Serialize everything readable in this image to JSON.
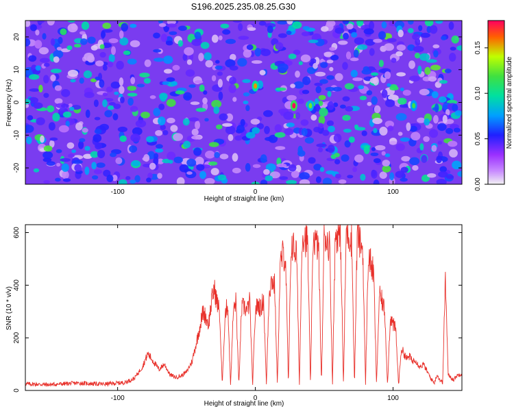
{
  "title": "S196.2025.235.08.25.G30",
  "chart_data": [
    {
      "type": "heatmap",
      "title": "S196.2025.235.08.25.G30",
      "xlabel": "Height of straight line (km)",
      "ylabel": "Frequency (Hz)",
      "xlim": [
        -167,
        150
      ],
      "ylim": [
        -25,
        25
      ],
      "x_ticks": [
        "-100",
        "0",
        "100"
      ],
      "x_tick_values": [
        -100,
        0,
        100
      ],
      "y_ticks": [
        "-20",
        "-10",
        "0",
        "10",
        "20"
      ],
      "y_tick_values": [
        -20,
        -10,
        0,
        10,
        20
      ],
      "colorbar": {
        "label": "Normalized spectral amplitude",
        "range": [
          0,
          0.18
        ],
        "ticks": [
          "0.00",
          "0.05",
          "0.10",
          "0.15"
        ],
        "tick_values": [
          0,
          0.05,
          0.1,
          0.15
        ],
        "colors": [
          "#f2f2f2",
          "#9b30ff",
          "#2020ff",
          "#00a0ff",
          "#00e0a0",
          "#40e040",
          "#c0ff00",
          "#ff6000",
          "#ff0060"
        ]
      },
      "peaks": [
        {
          "x": 28,
          "y": -1,
          "amplitude": 0.18
        },
        {
          "x": 40,
          "y": -1,
          "amplitude": 0.12
        },
        {
          "x": 115,
          "y": -1,
          "amplitude": 0.11
        },
        {
          "x": 0,
          "y": 5,
          "amplitude": 0.15
        }
      ]
    },
    {
      "type": "line",
      "xlabel": "Height of straight line (km)",
      "ylabel": "SNR (10 * v/v)",
      "xlim": [
        -167,
        150
      ],
      "ylim": [
        0,
        630
      ],
      "x_ticks": [
        "-100",
        "0",
        "100"
      ],
      "x_tick_values": [
        -100,
        0,
        100
      ],
      "y_ticks": [
        "0",
        "200",
        "400",
        "600"
      ],
      "y_tick_values": [
        0,
        200,
        400,
        600
      ],
      "series": [
        {
          "name": "SNR",
          "color": "#e8302a",
          "x": [
            -167,
            -150,
            -130,
            -110,
            -95,
            -88,
            -82,
            -78,
            -74,
            -70,
            -66,
            -62,
            -58,
            -54,
            -50,
            -46,
            -42,
            -38,
            -36,
            -34,
            -32,
            -30,
            -28,
            -26,
            -24,
            -22,
            -20,
            -18,
            -16,
            -14,
            -12,
            -10,
            -8,
            -6,
            -4,
            -2,
            0,
            2,
            4,
            6,
            8,
            10,
            12,
            14,
            16,
            18,
            20,
            22,
            24,
            26,
            28,
            30,
            32,
            34,
            36,
            38,
            40,
            42,
            44,
            46,
            48,
            50,
            52,
            54,
            56,
            58,
            60,
            62,
            64,
            66,
            68,
            70,
            72,
            74,
            76,
            78,
            80,
            82,
            84,
            86,
            88,
            90,
            92,
            94,
            96,
            98,
            100,
            102,
            104,
            106,
            108,
            110,
            112,
            114,
            116,
            118,
            120,
            122,
            124,
            126,
            128,
            130,
            132,
            134,
            136,
            138,
            140,
            142,
            144,
            146,
            150
          ],
          "values": [
            25,
            22,
            28,
            24,
            30,
            45,
            90,
            140,
            110,
            80,
            100,
            60,
            50,
            55,
            70,
            110,
            200,
            300,
            280,
            250,
            330,
            390,
            340,
            300,
            20,
            290,
            330,
            20,
            300,
            340,
            20,
            310,
            320,
            300,
            340,
            20,
            300,
            330,
            310,
            350,
            20,
            380,
            420,
            400,
            20,
            470,
            520,
            500,
            20,
            560,
            540,
            520,
            20,
            600,
            580,
            560,
            20,
            590,
            560,
            540,
            20,
            600,
            570,
            550,
            20,
            580,
            600,
            560,
            20,
            610,
            590,
            570,
            20,
            600,
            560,
            540,
            20,
            510,
            480,
            440,
            20,
            360,
            340,
            300,
            20,
            280,
            250,
            230,
            20,
            160,
            140,
            120,
            130,
            110,
            120,
            100,
            90,
            100,
            80,
            60,
            40,
            30,
            60,
            40,
            30,
            430,
            60,
            50,
            40,
            55,
            65
          ]
        }
      ]
    }
  ]
}
